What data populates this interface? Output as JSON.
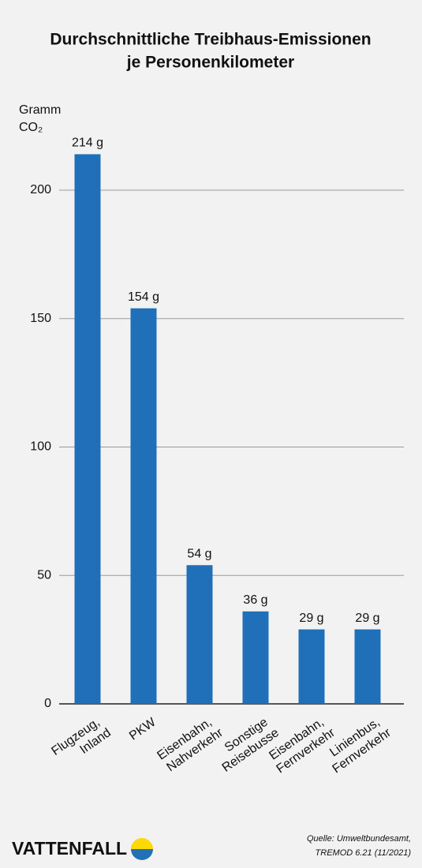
{
  "chart_data": {
    "type": "bar",
    "title": [
      "Durchschnittliche Treibhaus-Emissionen",
      "je Personenkilometer"
    ],
    "y_label": [
      "Gramm",
      "CO₂"
    ],
    "categories": [
      [
        "Flugzeug,",
        "Inland"
      ],
      [
        "PKW"
      ],
      [
        "Eisenbahn,",
        "Nahverkehr"
      ],
      [
        "Sonstige",
        "Reisebusse"
      ],
      [
        "Eisenbahn,",
        "Fernverkehr"
      ],
      [
        "Linienbus,",
        "Fernverkehr"
      ]
    ],
    "values": [
      214,
      154,
      54,
      36,
      29,
      29
    ],
    "value_labels": [
      "214 g",
      "154 g",
      "54 g",
      "36 g",
      "29 g",
      "29 g"
    ],
    "color": "#1f70b8",
    "ylim": [
      0,
      230
    ],
    "yticks": [
      0,
      50,
      100,
      150,
      200
    ],
    "grid": true
  },
  "footer": {
    "brand": "VATTENFALL",
    "source": [
      "Quelle: Umweltbundesamt,",
      "TREMOD 6.21 (11/2021)"
    ]
  }
}
